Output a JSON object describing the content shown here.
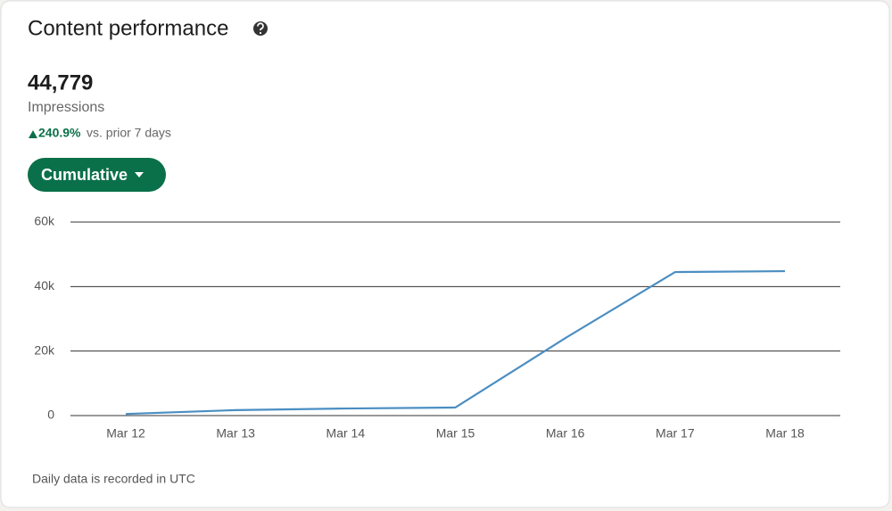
{
  "header": {
    "title": "Content performance"
  },
  "summary": {
    "value": "44,779",
    "label": "Impressions",
    "change": "240.9%",
    "comparison": "vs. prior 7 days"
  },
  "control": {
    "label": "Cumulative"
  },
  "chart_data": {
    "type": "line",
    "categories": [
      "Mar 12",
      "Mar 13",
      "Mar 14",
      "Mar 15",
      "Mar 16",
      "Mar 17",
      "Mar 18"
    ],
    "values": [
      500,
      1700,
      2200,
      2500,
      24000,
      44500,
      44779
    ],
    "color": "#4a8ec2",
    "ylim": [
      0,
      60000
    ],
    "yticks": [
      0,
      {
        "value": 20000,
        "label": "20k"
      },
      {
        "value": 40000,
        "label": "40k"
      },
      {
        "value": 60000,
        "label": "60k"
      }
    ],
    "grid": true
  },
  "footer": {
    "note": "Daily data is recorded in UTC"
  }
}
